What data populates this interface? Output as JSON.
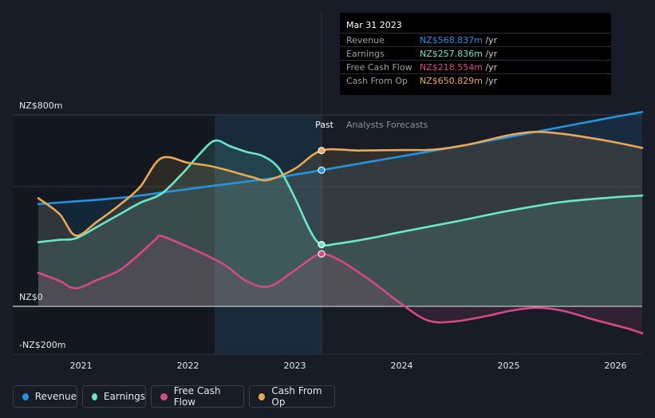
{
  "tooltip": {
    "date": "Mar 31 2023",
    "rows": [
      {
        "label": "Revenue",
        "value": "NZ$568.837m",
        "unit": "/yr",
        "color": "#2394df"
      },
      {
        "label": "Earnings",
        "value": "NZ$257.836m",
        "unit": "/yr",
        "color": "#6be6c9"
      },
      {
        "label": "Free Cash Flow",
        "value": "NZ$218.554m",
        "unit": "/yr",
        "color": "#d6488a"
      },
      {
        "label": "Cash From Op",
        "value": "NZ$650.829m",
        "unit": "/yr",
        "color": "#e9a855"
      }
    ]
  },
  "labels": {
    "past": "Past",
    "forecast": "Analysts Forecasts"
  },
  "legend": [
    {
      "label": "Revenue",
      "color": "#2394df"
    },
    {
      "label": "Earnings",
      "color": "#6be6c9"
    },
    {
      "label": "Free Cash Flow",
      "color": "#d6488a"
    },
    {
      "label": "Cash From Op",
      "color": "#e9a855"
    }
  ],
  "chart_data": {
    "type": "line",
    "unit": "NZ$m",
    "y_tick_labels": [
      {
        "value": 800,
        "label": "NZ$800m"
      },
      {
        "value": 0,
        "label": "NZ$0"
      },
      {
        "value": -200,
        "label": "-NZ$200m"
      }
    ],
    "ylim": [
      -200,
      800
    ],
    "xlim": [
      2020.6,
      2026.25
    ],
    "x_ticks": [
      2021,
      2022,
      2023,
      2024,
      2025,
      2026
    ],
    "highlight_range": [
      2022.25,
      2023.25
    ],
    "past_end": 2023.25,
    "series": [
      {
        "name": "Revenue",
        "color": "#2394df",
        "points": [
          [
            2020.6,
            427
          ],
          [
            2020.9,
            437
          ],
          [
            2021.2,
            447
          ],
          [
            2021.5,
            460
          ],
          [
            2021.8,
            478
          ],
          [
            2022.1,
            496
          ],
          [
            2022.4,
            513
          ],
          [
            2022.7,
            530
          ],
          [
            2023.0,
            550
          ],
          [
            2023.25,
            569
          ],
          [
            2023.6,
            596
          ],
          [
            2024.0,
            627
          ],
          [
            2024.5,
            666
          ],
          [
            2025.0,
            707
          ],
          [
            2025.5,
            750
          ],
          [
            2026.0,
            792
          ],
          [
            2026.25,
            812
          ]
        ]
      },
      {
        "name": "Earnings",
        "color": "#6be6c9",
        "points": [
          [
            2020.6,
            268
          ],
          [
            2020.8,
            278
          ],
          [
            2020.95,
            284
          ],
          [
            2021.15,
            332
          ],
          [
            2021.35,
            382
          ],
          [
            2021.55,
            432
          ],
          [
            2021.75,
            470
          ],
          [
            2021.95,
            556
          ],
          [
            2022.1,
            632
          ],
          [
            2022.25,
            692
          ],
          [
            2022.4,
            668
          ],
          [
            2022.55,
            645
          ],
          [
            2022.7,
            628
          ],
          [
            2022.85,
            577
          ],
          [
            2023.0,
            453
          ],
          [
            2023.15,
            310
          ],
          [
            2023.25,
            258
          ],
          [
            2023.4,
            262
          ],
          [
            2023.7,
            284
          ],
          [
            2024.0,
            311
          ],
          [
            2024.5,
            354
          ],
          [
            2025.0,
            399
          ],
          [
            2025.5,
            436
          ],
          [
            2026.0,
            456
          ],
          [
            2026.25,
            463
          ]
        ]
      },
      {
        "name": "Free Cash Flow",
        "color": "#d6488a",
        "points": [
          [
            2020.6,
            140
          ],
          [
            2020.8,
            106
          ],
          [
            2020.95,
            75
          ],
          [
            2021.15,
            110
          ],
          [
            2021.35,
            148
          ],
          [
            2021.5,
            200
          ],
          [
            2021.7,
            281
          ],
          [
            2021.75,
            294
          ],
          [
            2021.95,
            258
          ],
          [
            2022.15,
            218
          ],
          [
            2022.35,
            171
          ],
          [
            2022.55,
            105
          ],
          [
            2022.75,
            82
          ],
          [
            2022.95,
            135
          ],
          [
            2023.1,
            183
          ],
          [
            2023.25,
            219
          ],
          [
            2023.45,
            185
          ],
          [
            2023.75,
            94
          ],
          [
            2024.0,
            9
          ],
          [
            2024.25,
            -60
          ],
          [
            2024.5,
            -63
          ],
          [
            2024.8,
            -40
          ],
          [
            2025.0,
            -20
          ],
          [
            2025.25,
            -6
          ],
          [
            2025.5,
            -18
          ],
          [
            2025.8,
            -56
          ],
          [
            2026.1,
            -91
          ],
          [
            2026.25,
            -113
          ]
        ]
      },
      {
        "name": "Cash From Op",
        "color": "#e9a855",
        "points": [
          [
            2020.6,
            452
          ],
          [
            2020.8,
            385
          ],
          [
            2020.95,
            296
          ],
          [
            2021.15,
            354
          ],
          [
            2021.35,
            420
          ],
          [
            2021.55,
            498
          ],
          [
            2021.75,
            619
          ],
          [
            2022.0,
            600
          ],
          [
            2022.2,
            587
          ],
          [
            2022.4,
            565
          ],
          [
            2022.6,
            540
          ],
          [
            2022.75,
            528
          ],
          [
            2023.0,
            575
          ],
          [
            2023.25,
            651
          ],
          [
            2023.6,
            651
          ],
          [
            2024.0,
            653
          ],
          [
            2024.3,
            655
          ],
          [
            2024.6,
            674
          ],
          [
            2025.0,
            715
          ],
          [
            2025.25,
            729
          ],
          [
            2025.5,
            721
          ],
          [
            2025.8,
            701
          ],
          [
            2026.0,
            685
          ],
          [
            2026.25,
            662
          ]
        ]
      }
    ],
    "markers": [
      {
        "series": "Revenue",
        "x": 2023.25,
        "y": 569
      },
      {
        "series": "Earnings",
        "x": 2023.25,
        "y": 258
      },
      {
        "series": "Free Cash Flow",
        "x": 2023.25,
        "y": 219
      },
      {
        "series": "Cash From Op",
        "x": 2023.25,
        "y": 651
      }
    ]
  }
}
